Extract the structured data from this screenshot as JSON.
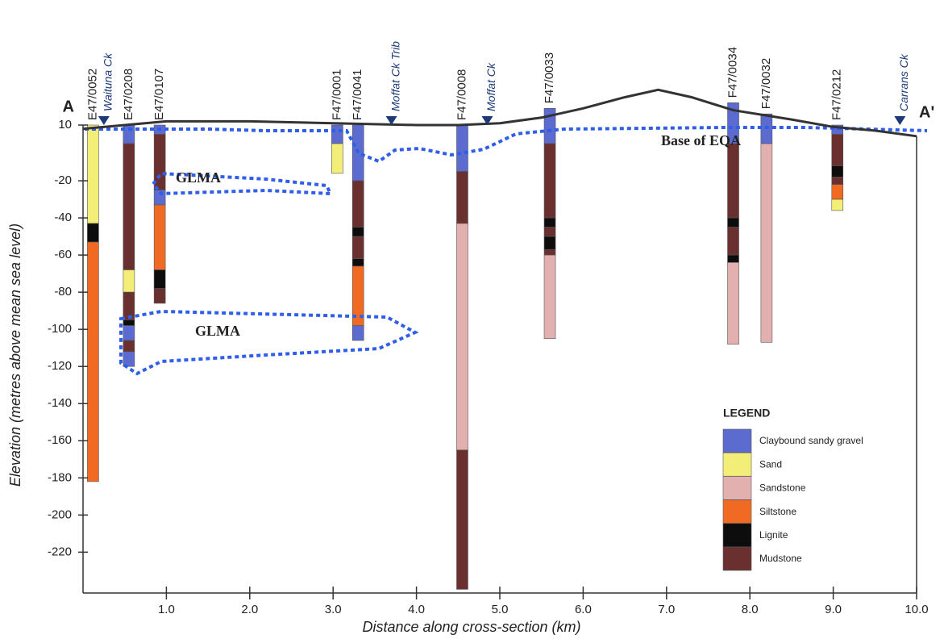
{
  "chart_data": {
    "type": "cross-section",
    "title_left": "A",
    "title_right": "A'",
    "xlabel": "Distance along cross-section (km)",
    "ylabel": "Elevation (metres above mean sea level)",
    "xlim": [
      0,
      10
    ],
    "ylim": [
      -242,
      10
    ],
    "xticks": [
      {
        "value": 1,
        "label": "1.0"
      },
      {
        "value": 2,
        "label": "2.0"
      },
      {
        "value": 3,
        "label": "3.0"
      },
      {
        "value": 4,
        "label": "4.0"
      },
      {
        "value": 5,
        "label": "5.0"
      },
      {
        "value": 6,
        "label": "6.0"
      },
      {
        "value": 7,
        "label": "7.0"
      },
      {
        "value": 8,
        "label": "8.0"
      },
      {
        "value": 9,
        "label": "9.0"
      },
      {
        "value": 10,
        "label": "10.0"
      }
    ],
    "yticks": [
      10,
      -20,
      -40,
      -60,
      -80,
      -100,
      -120,
      -140,
      -160,
      -180,
      -200,
      -220
    ],
    "ground_surface": {
      "x": [
        0,
        0.5,
        1,
        2,
        3,
        4,
        4.5,
        5,
        5.5,
        6,
        6.5,
        6.9,
        7.3,
        7.8,
        8.5,
        9,
        9.5,
        10
      ],
      "elevation": [
        8,
        10,
        12,
        12,
        11,
        10,
        10,
        11,
        14,
        19,
        25,
        29,
        25,
        18,
        13,
        9,
        7,
        4
      ]
    },
    "streams": [
      {
        "name": "Waituna Ck",
        "x": 0.25
      },
      {
        "name": "Moffat Ck Trib",
        "x": 3.7
      },
      {
        "name": "Moffat Ck",
        "x": 4.85
      },
      {
        "name": "Carrans Ck",
        "x": 9.8
      }
    ],
    "annotations": [
      "Base of EQA",
      "GLMA",
      "GLMA"
    ],
    "legend_title": "LEGEND",
    "legend": [
      {
        "name": "Claybound sandy gravel",
        "color": "#5b6bd0"
      },
      {
        "name": "Sand",
        "color": "#f3ee78"
      },
      {
        "name": "Sandstone",
        "color": "#e3b0b0"
      },
      {
        "name": "Siltstone",
        "color": "#f06a24"
      },
      {
        "name": "Lignite",
        "color": "#0d0d0d"
      },
      {
        "name": "Mudstone",
        "color": "#6a3030"
      }
    ],
    "boreholes": [
      {
        "name": "E47/0052",
        "x": 0.12,
        "layers": [
          {
            "lith": "Sand",
            "top": 10,
            "bottom": -43
          },
          {
            "lith": "Lignite",
            "top": -43,
            "bottom": -53
          },
          {
            "lith": "Siltstone",
            "top": -53,
            "bottom": -182
          }
        ]
      },
      {
        "name": "E47/0208",
        "x": 0.55,
        "layers": [
          {
            "lith": "Claybound sandy gravel",
            "top": 10,
            "bottom": 0
          },
          {
            "lith": "Mudstone",
            "top": 0,
            "bottom": -68
          },
          {
            "lith": "Sand",
            "top": -68,
            "bottom": -80
          },
          {
            "lith": "Mudstone",
            "top": -80,
            "bottom": -95
          },
          {
            "lith": "Lignite",
            "top": -95,
            "bottom": -98
          },
          {
            "lith": "Claybound sandy gravel",
            "top": -98,
            "bottom": -106
          },
          {
            "lith": "Mudstone",
            "top": -106,
            "bottom": -112
          },
          {
            "lith": "Claybound sandy gravel",
            "top": -112,
            "bottom": -120
          }
        ]
      },
      {
        "name": "E47/0107",
        "x": 0.92,
        "layers": [
          {
            "lith": "Claybound sandy gravel",
            "top": 10,
            "bottom": 5
          },
          {
            "lith": "Mudstone",
            "top": 5,
            "bottom": -25
          },
          {
            "lith": "Claybound sandy gravel",
            "top": -25,
            "bottom": -33
          },
          {
            "lith": "Siltstone",
            "top": -33,
            "bottom": -68
          },
          {
            "lith": "Lignite",
            "top": -68,
            "bottom": -78
          },
          {
            "lith": "Mudstone",
            "top": -78,
            "bottom": -86
          }
        ]
      },
      {
        "name": "F47/0001",
        "x": 3.05,
        "layers": [
          {
            "lith": "Claybound sandy gravel",
            "top": 10,
            "bottom": 0
          },
          {
            "lith": "Sand",
            "top": 0,
            "bottom": -16
          }
        ]
      },
      {
        "name": "F47/0041",
        "x": 3.3,
        "layers": [
          {
            "lith": "Claybound sandy gravel",
            "top": 10,
            "bottom": -20
          },
          {
            "lith": "Mudstone",
            "top": -20,
            "bottom": -45
          },
          {
            "lith": "Lignite",
            "top": -45,
            "bottom": -50
          },
          {
            "lith": "Mudstone",
            "top": -50,
            "bottom": -62
          },
          {
            "lith": "Lignite",
            "top": -62,
            "bottom": -66
          },
          {
            "lith": "Siltstone",
            "top": -66,
            "bottom": -98
          },
          {
            "lith": "Claybound sandy gravel",
            "top": -98,
            "bottom": -106
          }
        ]
      },
      {
        "name": "F47/0008",
        "x": 4.55,
        "layers": [
          {
            "lith": "Claybound sandy gravel",
            "top": 10,
            "bottom": -15
          },
          {
            "lith": "Mudstone",
            "top": -15,
            "bottom": -43
          },
          {
            "lith": "Sandstone",
            "top": -43,
            "bottom": -165
          },
          {
            "lith": "Mudstone",
            "top": -165,
            "bottom": -240
          }
        ]
      },
      {
        "name": "F47/0033",
        "x": 5.6,
        "layers": [
          {
            "lith": "Claybound sandy gravel",
            "top": 19,
            "bottom": 0
          },
          {
            "lith": "Mudstone",
            "top": 0,
            "bottom": -40
          },
          {
            "lith": "Lignite",
            "top": -40,
            "bottom": -45
          },
          {
            "lith": "Mudstone",
            "top": -45,
            "bottom": -50
          },
          {
            "lith": "Lignite",
            "top": -50,
            "bottom": -57
          },
          {
            "lith": "Mudstone",
            "top": -57,
            "bottom": -60
          },
          {
            "lith": "Sandstone",
            "top": -60,
            "bottom": -105
          }
        ]
      },
      {
        "name": "F47/0034",
        "x": 7.8,
        "layers": [
          {
            "lith": "Claybound sandy gravel",
            "top": 22,
            "bottom": 0
          },
          {
            "lith": "Mudstone",
            "top": 0,
            "bottom": -40
          },
          {
            "lith": "Lignite",
            "top": -40,
            "bottom": -45
          },
          {
            "lith": "Mudstone",
            "top": -45,
            "bottom": -60
          },
          {
            "lith": "Lignite",
            "top": -60,
            "bottom": -64
          },
          {
            "lith": "Sandstone",
            "top": -64,
            "bottom": -108
          }
        ]
      },
      {
        "name": "F47/0032",
        "x": 8.2,
        "layers": [
          {
            "lith": "Claybound sandy gravel",
            "top": 16,
            "bottom": 0
          },
          {
            "lith": "Sandstone",
            "top": 0,
            "bottom": -107
          }
        ]
      },
      {
        "name": "F47/0212",
        "x": 9.05,
        "layers": [
          {
            "lith": "Claybound sandy gravel",
            "top": 10,
            "bottom": 5
          },
          {
            "lith": "Mudstone",
            "top": 5,
            "bottom": -12
          },
          {
            "lith": "Lignite",
            "top": -12,
            "bottom": -18
          },
          {
            "lith": "Mudstone",
            "top": -18,
            "bottom": -22
          },
          {
            "lith": "Siltstone",
            "top": -22,
            "bottom": -30
          },
          {
            "lith": "Sand",
            "top": -30,
            "bottom": -36
          }
        ]
      }
    ]
  }
}
